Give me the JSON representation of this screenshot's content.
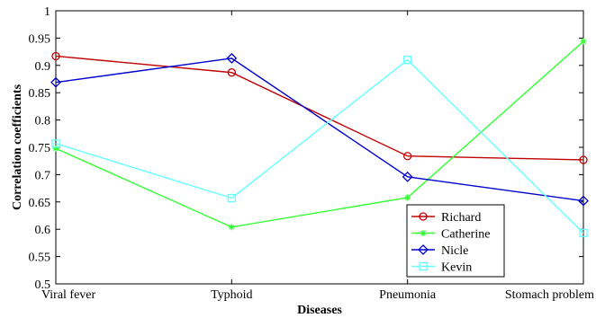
{
  "chart_data": {
    "type": "line",
    "title": "",
    "xlabel": "Diseases",
    "ylabel": "Correlation coefficients",
    "categories": [
      "Viral fever",
      "Typhoid",
      "Pneumonia",
      "Stomach problem"
    ],
    "ylim": [
      0.5,
      1
    ],
    "yticks": [
      "0.5",
      "0.55",
      "0.6",
      "0.65",
      "0.7",
      "0.75",
      "0.8",
      "0.85",
      "0.9",
      "0.95",
      "1"
    ],
    "grid": false,
    "legend_position": "bottom-right",
    "series": [
      {
        "name": "Richard",
        "values": [
          0.917,
          0.887,
          0.734,
          0.727
        ],
        "color": "#c00000",
        "marker": "circle"
      },
      {
        "name": "Catherine",
        "values": [
          0.748,
          0.604,
          0.658,
          0.944
        ],
        "color": "#33ff33",
        "marker": "star"
      },
      {
        "name": "Nicle",
        "values": [
          0.869,
          0.913,
          0.696,
          0.652
        ],
        "color": "#0000cc",
        "marker": "diamond"
      },
      {
        "name": "Kevin",
        "values": [
          0.757,
          0.657,
          0.91,
          0.593
        ],
        "color": "#66ffff",
        "marker": "square"
      }
    ]
  }
}
